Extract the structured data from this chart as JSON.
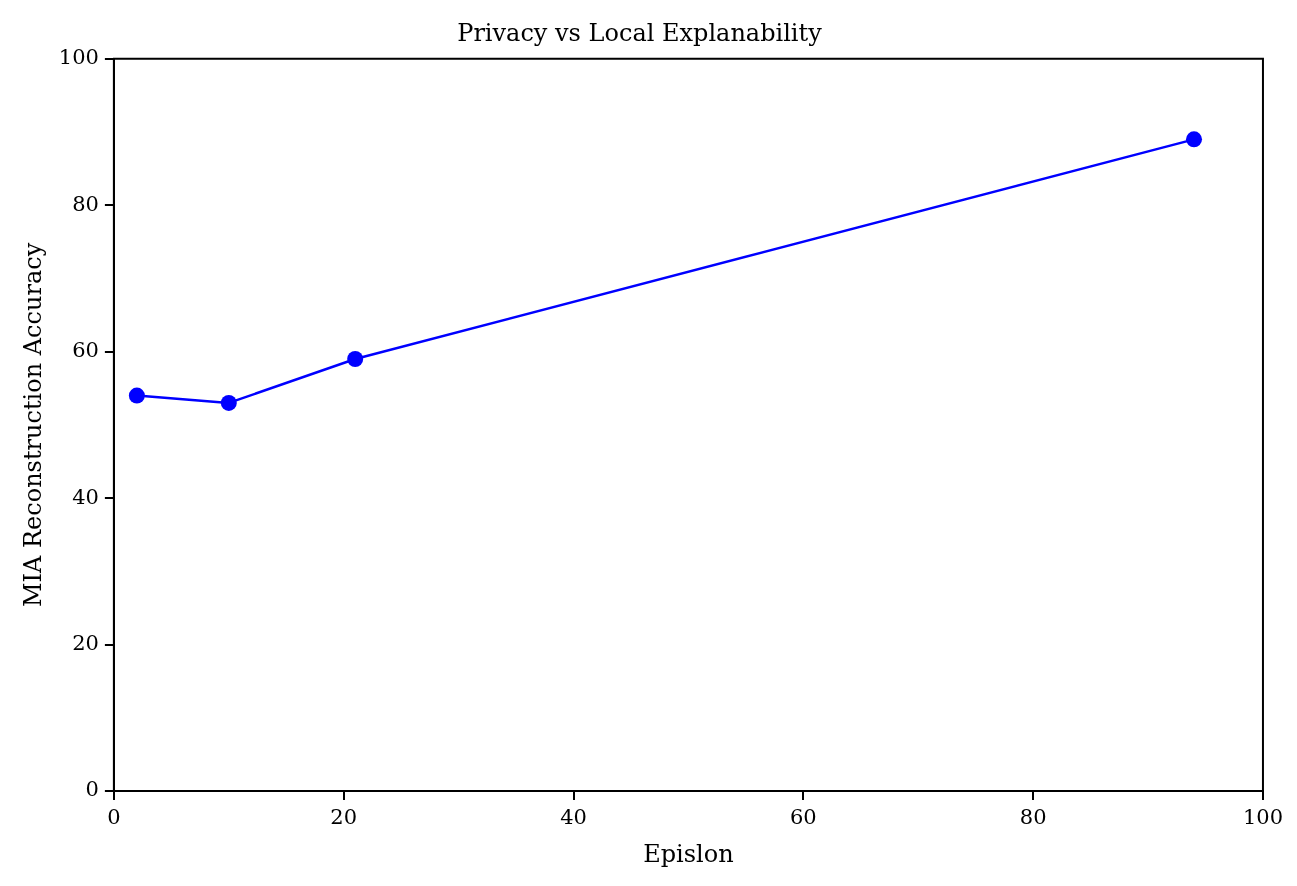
{
  "chart_data": {
    "type": "line",
    "title": "Privacy vs Local Explanability",
    "xlabel": "Epislon",
    "ylabel": "MIA Reconstruction Accuracy",
    "x": [
      2,
      10,
      21,
      94
    ],
    "series": [
      {
        "color": "#0000ff",
        "values": [
          54,
          53,
          59,
          89
        ]
      }
    ],
    "xlim": [
      0,
      100
    ],
    "xticks": [
      0,
      20,
      40,
      60,
      80,
      100
    ],
    "ylim": [
      0,
      100
    ],
    "yticks": [
      0,
      20,
      40,
      60,
      80,
      100
    ],
    "grid": false,
    "legend": false,
    "marker": "circle",
    "line_style": "solid"
  }
}
